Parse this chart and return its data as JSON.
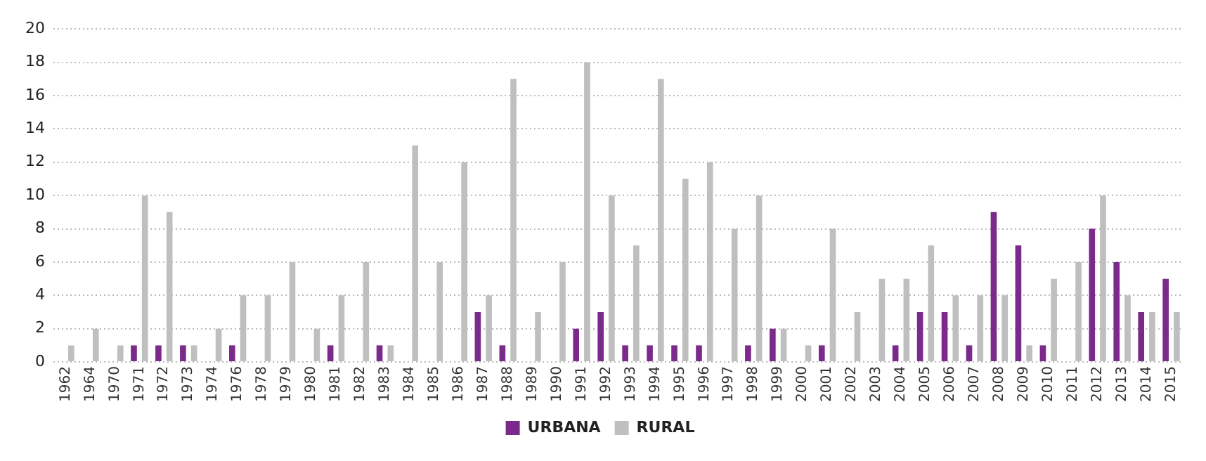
{
  "chart_data": {
    "type": "bar",
    "categories": [
      "1962",
      "1964",
      "1970",
      "1971",
      "1972",
      "1973",
      "1974",
      "1976",
      "1978",
      "1979",
      "1980",
      "1981",
      "1982",
      "1983",
      "1984",
      "1985",
      "1986",
      "1987",
      "1988",
      "1989",
      "1990",
      "1991",
      "1992",
      "1993",
      "1994",
      "1995",
      "1996",
      "1997",
      "1998",
      "1999",
      "2000",
      "2001",
      "2002",
      "2003",
      "2004",
      "2005",
      "2006",
      "2007",
      "2008",
      "2009",
      "2010",
      "2011",
      "2012",
      "2013",
      "2014",
      "2015"
    ],
    "series": [
      {
        "name": "URBANA",
        "color": "#7b2a8c",
        "values": [
          0,
          0,
          0,
          1,
          1,
          1,
          0,
          1,
          0,
          0,
          0,
          1,
          0,
          1,
          0,
          0,
          0,
          3,
          1,
          0,
          0,
          2,
          3,
          1,
          1,
          1,
          1,
          0,
          1,
          2,
          0,
          1,
          0,
          0,
          1,
          3,
          3,
          1,
          9,
          7,
          1,
          0,
          8,
          6,
          3,
          5
        ]
      },
      {
        "name": "RURAL",
        "color": "#bfbfbf",
        "values": [
          1,
          2,
          1,
          10,
          9,
          1,
          2,
          4,
          4,
          6,
          2,
          4,
          6,
          1,
          13,
          6,
          12,
          4,
          17,
          3,
          6,
          18,
          10,
          7,
          17,
          11,
          12,
          8,
          10,
          2,
          1,
          8,
          3,
          5,
          5,
          7,
          4,
          4,
          4,
          1,
          5,
          6,
          10,
          4,
          3,
          3
        ]
      }
    ],
    "ylim": [
      0,
      20
    ],
    "yticks": [
      0,
      2,
      4,
      6,
      8,
      10,
      12,
      14,
      16,
      18,
      20
    ],
    "grid": "y",
    "legend": "bottom"
  }
}
